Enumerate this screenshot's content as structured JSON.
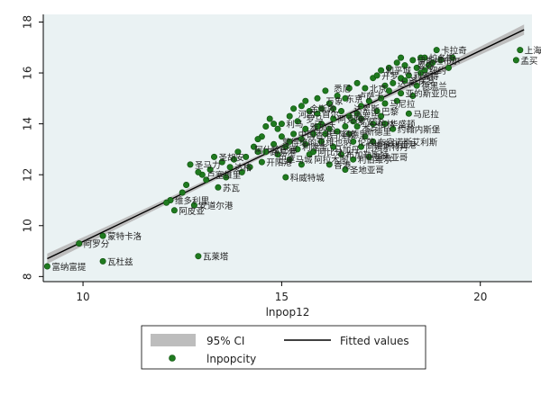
{
  "chart_data": {
    "type": "scatter",
    "title": "",
    "xlabel": "lnpop12",
    "ylabel": "",
    "xlim": [
      9.0,
      21.3
    ],
    "ylim": [
      7.8,
      18.3
    ],
    "x_ticks": [
      10,
      15,
      20
    ],
    "y_ticks": [
      8,
      10,
      12,
      14,
      16,
      18
    ],
    "grid": false,
    "colors": {
      "background": "#eaf2f3",
      "point": "#1f7a1f",
      "point_edge": "#0d4d0d",
      "ci_band": "#bdbdbd",
      "fit_line": "#000000"
    },
    "legend": {
      "placement": "bottom",
      "entries": [
        {
          "key": "ci",
          "label": "95% CI"
        },
        {
          "key": "fit",
          "label": "Fitted values"
        },
        {
          "key": "points",
          "label": "lnpopcity"
        }
      ]
    },
    "fit": {
      "x": [
        9.1,
        21.1
      ],
      "y": [
        8.7,
        17.7
      ],
      "ci_halfwidth_ends": 0.2,
      "ci_halfwidth_mid": 0.08
    },
    "labeled_points": [
      {
        "x": 9.1,
        "y": 8.4,
        "label": "富纳富提"
      },
      {
        "x": 9.9,
        "y": 9.3,
        "label": "阿罗分"
      },
      {
        "x": 10.5,
        "y": 9.6,
        "label": "蒙特卡洛"
      },
      {
        "x": 10.5,
        "y": 8.6,
        "label": "瓦杜兹"
      },
      {
        "x": 12.9,
        "y": 8.8,
        "label": "瓦莱塔"
      },
      {
        "x": 12.2,
        "y": 11.0,
        "label": "维多利里"
      },
      {
        "x": 12.3,
        "y": 10.6,
        "label": "阿皮亚"
      },
      {
        "x": 12.8,
        "y": 10.8,
        "label": "安道尔港"
      },
      {
        "x": 12.7,
        "y": 12.4,
        "label": "圣马力"
      },
      {
        "x": 13.4,
        "y": 11.5,
        "label": "苏瓦"
      },
      {
        "x": 13.0,
        "y": 12.0,
        "label": "卢塞维里"
      },
      {
        "x": 13.3,
        "y": 12.7,
        "label": "圣胡安"
      },
      {
        "x": 14.5,
        "y": 12.5,
        "label": "开阳港"
      },
      {
        "x": 14.6,
        "y": 12.9,
        "label": "路易港"
      },
      {
        "x": 15.1,
        "y": 11.9,
        "label": "科威特城"
      },
      {
        "x": 16.6,
        "y": 12.2,
        "label": "圣地亚哥"
      },
      {
        "x": 16.8,
        "y": 12.6,
        "label": "利伯维尔"
      },
      {
        "x": 15.8,
        "y": 12.9,
        "label": "阿比让"
      },
      {
        "x": 17.0,
        "y": 13.7,
        "label": "新德里"
      },
      {
        "x": 17.2,
        "y": 13.2,
        "label": "维多利亚港"
      },
      {
        "x": 15.6,
        "y": 14.6,
        "label": "金斯敦"
      },
      {
        "x": 16.3,
        "y": 14.2,
        "label": "阿克拉"
      },
      {
        "x": 16.7,
        "y": 14.6,
        "label": "达累斯"
      },
      {
        "x": 17.6,
        "y": 14.8,
        "label": "马尼拉"
      },
      {
        "x": 18.0,
        "y": 15.2,
        "label": "亚的斯亚贝巴"
      },
      {
        "x": 17.8,
        "y": 15.6,
        "label": "达卡"
      },
      {
        "x": 17.5,
        "y": 16.1,
        "label": "和平城"
      },
      {
        "x": 18.3,
        "y": 16.3,
        "label": "曼谷"
      },
      {
        "x": 18.2,
        "y": 15.9,
        "label": "利雅得"
      },
      {
        "x": 18.4,
        "y": 15.5,
        "label": "德黑兰"
      },
      {
        "x": 18.9,
        "y": 16.9,
        "label": "卡拉奇"
      },
      {
        "x": 18.3,
        "y": 16.5,
        "label": "伊斯坦布尔"
      },
      {
        "x": 18.6,
        "y": 16.6,
        "label": "拉各斯"
      },
      {
        "x": 18.6,
        "y": 16.1,
        "label": "纽约"
      },
      {
        "x": 18.2,
        "y": 14.4,
        "label": "马尼拉"
      },
      {
        "x": 17.8,
        "y": 13.8,
        "label": "约翰内斯堡"
      },
      {
        "x": 17.2,
        "y": 12.7,
        "label": "圣地亚哥"
      },
      {
        "x": 16.2,
        "y": 13.0,
        "label": "马加丹"
      },
      {
        "x": 16.8,
        "y": 13.3,
        "label": "伦敦"
      },
      {
        "x": 17.0,
        "y": 13.1,
        "label": "阿姆斯特丹"
      },
      {
        "x": 16.5,
        "y": 15.0,
        "label": "东京"
      },
      {
        "x": 16.0,
        "y": 14.9,
        "label": "万象"
      },
      {
        "x": 17.1,
        "y": 15.4,
        "label": "北京"
      },
      {
        "x": 17.4,
        "y": 15.9,
        "label": "开罗"
      },
      {
        "x": 15.0,
        "y": 14.0,
        "label": "利马"
      },
      {
        "x": 15.9,
        "y": 14.4,
        "label": "首尔"
      },
      {
        "x": 15.6,
        "y": 13.9,
        "label": "雅加达"
      },
      {
        "x": 16.1,
        "y": 13.6,
        "label": "吉隆坡"
      },
      {
        "x": 14.9,
        "y": 13.3,
        "label": "蒙得维的亚"
      },
      {
        "x": 15.4,
        "y": 13.1,
        "label": "利隆圭"
      },
      {
        "x": 14.8,
        "y": 12.6,
        "label": "巴拿马城"
      },
      {
        "x": 16.9,
        "y": 13.9,
        "label": "米兰"
      },
      {
        "x": 17.4,
        "y": 14.5,
        "label": "巴黎"
      },
      {
        "x": 16.2,
        "y": 15.4,
        "label": "悉尼"
      },
      {
        "x": 16.0,
        "y": 13.3,
        "label": "维也纳"
      },
      {
        "x": 14.2,
        "y": 13.0,
        "label": "阿什哈巴德"
      },
      {
        "x": 13.7,
        "y": 12.3,
        "label": "达格"
      },
      {
        "x": 15.5,
        "y": 14.2,
        "label": "罗马"
      },
      {
        "x": 17.6,
        "y": 14.0,
        "label": "华盛顿"
      },
      {
        "x": 16.4,
        "y": 13.6,
        "label": "马德里"
      },
      {
        "x": 17.3,
        "y": 14.0,
        "label": "柏林"
      },
      {
        "x": 16.8,
        "y": 14.1,
        "label": "罗安达"
      },
      {
        "x": 15.3,
        "y": 14.4,
        "label": "河内"
      },
      {
        "x": 16.8,
        "y": 15.1,
        "label": "卢萨卡"
      },
      {
        "x": 15.7,
        "y": 12.6,
        "label": "阿拉木图"
      },
      {
        "x": 16.5,
        "y": 12.8,
        "label": "布加勒斯特"
      },
      {
        "x": 16.2,
        "y": 12.4,
        "label": "香港"
      },
      {
        "x": 16.7,
        "y": 14.3,
        "label": "内罗毕"
      },
      {
        "x": 18.1,
        "y": 15.7,
        "label": "圣保罗"
      },
      {
        "x": 17.3,
        "y": 13.3,
        "label": "布宜诺斯艾利斯"
      },
      {
        "x": 15.3,
        "y": 13.6,
        "label": "中国香港"
      },
      {
        "x": 21.0,
        "y": 16.9,
        "label": "上海"
      },
      {
        "x": 20.9,
        "y": 16.5,
        "label": "孟买"
      }
    ],
    "points_xy": [
      [
        9.1,
        8.4
      ],
      [
        9.9,
        9.3
      ],
      [
        10.5,
        9.6
      ],
      [
        10.5,
        8.6
      ],
      [
        12.9,
        8.8
      ],
      [
        12.2,
        11.0
      ],
      [
        12.3,
        10.6
      ],
      [
        12.8,
        10.8
      ],
      [
        12.7,
        12.4
      ],
      [
        13.4,
        11.5
      ],
      [
        13.0,
        12.0
      ],
      [
        13.3,
        12.7
      ],
      [
        12.1,
        10.9
      ],
      [
        12.5,
        11.3
      ],
      [
        12.6,
        11.6
      ],
      [
        12.9,
        12.1
      ],
      [
        13.1,
        11.8
      ],
      [
        13.2,
        12.2
      ],
      [
        13.5,
        12.5
      ],
      [
        13.6,
        11.9
      ],
      [
        13.8,
        12.6
      ],
      [
        13.9,
        12.9
      ],
      [
        14.1,
        12.7
      ],
      [
        14.2,
        12.3
      ],
      [
        14.3,
        13.1
      ],
      [
        14.4,
        12.9
      ],
      [
        14.5,
        12.5
      ],
      [
        14.6,
        12.9
      ],
      [
        14.5,
        13.5
      ],
      [
        14.6,
        13.9
      ],
      [
        14.7,
        14.2
      ],
      [
        14.8,
        13.2
      ],
      [
        14.9,
        12.8
      ],
      [
        15.0,
        13.5
      ],
      [
        15.0,
        14.0
      ],
      [
        15.1,
        11.9
      ],
      [
        15.1,
        13.1
      ],
      [
        15.2,
        14.3
      ],
      [
        15.2,
        12.6
      ],
      [
        15.3,
        13.6
      ],
      [
        15.3,
        14.6
      ],
      [
        15.4,
        13.0
      ],
      [
        15.4,
        14.1
      ],
      [
        15.5,
        13.4
      ],
      [
        15.5,
        12.4
      ],
      [
        15.6,
        14.9
      ],
      [
        15.6,
        13.8
      ],
      [
        15.7,
        12.8
      ],
      [
        15.7,
        14.5
      ],
      [
        15.8,
        12.9
      ],
      [
        15.8,
        13.6
      ],
      [
        15.9,
        14.4
      ],
      [
        15.9,
        15.0
      ],
      [
        16.0,
        13.3
      ],
      [
        16.0,
        14.0
      ],
      [
        16.1,
        13.6
      ],
      [
        16.1,
        15.3
      ],
      [
        16.2,
        12.4
      ],
      [
        16.2,
        14.8
      ],
      [
        16.3,
        14.2
      ],
      [
        16.3,
        13.1
      ],
      [
        16.4,
        13.7
      ],
      [
        16.4,
        15.1
      ],
      [
        16.5,
        12.8
      ],
      [
        16.5,
        14.5
      ],
      [
        16.6,
        12.2
      ],
      [
        16.6,
        13.9
      ],
      [
        16.7,
        14.3
      ],
      [
        16.7,
        15.4
      ],
      [
        16.8,
        12.6
      ],
      [
        16.8,
        13.3
      ],
      [
        16.8,
        14.1
      ],
      [
        16.9,
        13.9
      ],
      [
        16.9,
        15.6
      ],
      [
        17.0,
        13.1
      ],
      [
        17.0,
        14.7
      ],
      [
        17.1,
        15.4
      ],
      [
        17.1,
        13.5
      ],
      [
        17.2,
        12.7
      ],
      [
        17.2,
        14.9
      ],
      [
        17.3,
        13.3
      ],
      [
        17.3,
        14.0
      ],
      [
        17.3,
        15.8
      ],
      [
        17.4,
        14.5
      ],
      [
        17.4,
        15.9
      ],
      [
        17.5,
        16.1
      ],
      [
        17.5,
        14.3
      ],
      [
        17.6,
        14.0
      ],
      [
        17.6,
        14.8
      ],
      [
        17.7,
        15.3
      ],
      [
        17.7,
        16.2
      ],
      [
        17.8,
        13.8
      ],
      [
        17.8,
        15.6
      ],
      [
        17.9,
        14.9
      ],
      [
        17.9,
        16.4
      ],
      [
        18.0,
        15.2
      ],
      [
        18.0,
        15.8
      ],
      [
        18.1,
        15.7
      ],
      [
        18.1,
        16.3
      ],
      [
        18.2,
        14.4
      ],
      [
        18.2,
        15.9
      ],
      [
        18.3,
        16.5
      ],
      [
        18.3,
        15.1
      ],
      [
        18.4,
        15.5
      ],
      [
        18.4,
        16.2
      ],
      [
        18.5,
        16.0
      ],
      [
        18.5,
        16.6
      ],
      [
        18.6,
        16.1
      ],
      [
        18.6,
        16.6
      ],
      [
        18.7,
        16.3
      ],
      [
        18.8,
        16.4
      ],
      [
        18.9,
        16.9
      ],
      [
        19.0,
        16.5
      ],
      [
        19.2,
        16.2
      ],
      [
        19.3,
        16.6
      ],
      [
        21.0,
        16.9
      ],
      [
        20.9,
        16.5
      ],
      [
        14.8,
        14.0
      ],
      [
        15.6,
        13.2
      ],
      [
        16.3,
        14.6
      ],
      [
        17.0,
        14.2
      ],
      [
        16.6,
        15.0
      ],
      [
        15.9,
        13.9
      ],
      [
        14.9,
        13.8
      ],
      [
        15.2,
        13.3
      ],
      [
        16.0,
        14.6
      ],
      [
        16.9,
        14.4
      ],
      [
        17.6,
        15.5
      ],
      [
        14.4,
        13.4
      ],
      [
        13.7,
        12.3
      ],
      [
        14.0,
        12.1
      ],
      [
        17.5,
        15.0
      ],
      [
        16.2,
        13.8
      ],
      [
        15.5,
        14.7
      ],
      [
        16.7,
        13.6
      ],
      [
        18.0,
        16.6
      ]
    ]
  }
}
